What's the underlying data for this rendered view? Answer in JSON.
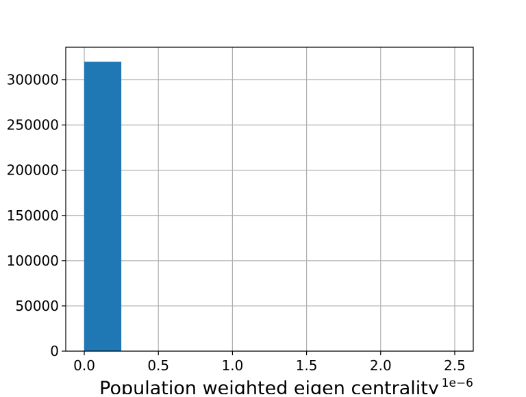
{
  "chart_data": {
    "type": "bar",
    "title": "",
    "xlabel": "Population weighted eigen centrality",
    "ylabel": "",
    "x_offset_label": "1e−6",
    "bin_edges": [
      0.0,
      0.25,
      0.5,
      0.75,
      1.0,
      1.25,
      1.5,
      1.75,
      2.0,
      2.25,
      2.5
    ],
    "values": [
      320000,
      0,
      0,
      0,
      0,
      0,
      0,
      0,
      0,
      1
    ],
    "xlim": [
      -0.125,
      2.625
    ],
    "ylim": [
      0,
      336000
    ],
    "x_ticks": [
      0.0,
      0.5,
      1.0,
      1.5,
      2.0,
      2.5
    ],
    "x_tick_labels": [
      "0.0",
      "0.5",
      "1.0",
      "1.5",
      "2.0",
      "2.5"
    ],
    "y_ticks": [
      0,
      50000,
      100000,
      150000,
      200000,
      250000,
      300000
    ],
    "y_tick_labels": [
      "0",
      "50000",
      "100000",
      "150000",
      "200000",
      "250000",
      "300000"
    ],
    "grid": true,
    "bar_color": "#1f77b4",
    "grid_color": "#b0b0b0"
  }
}
